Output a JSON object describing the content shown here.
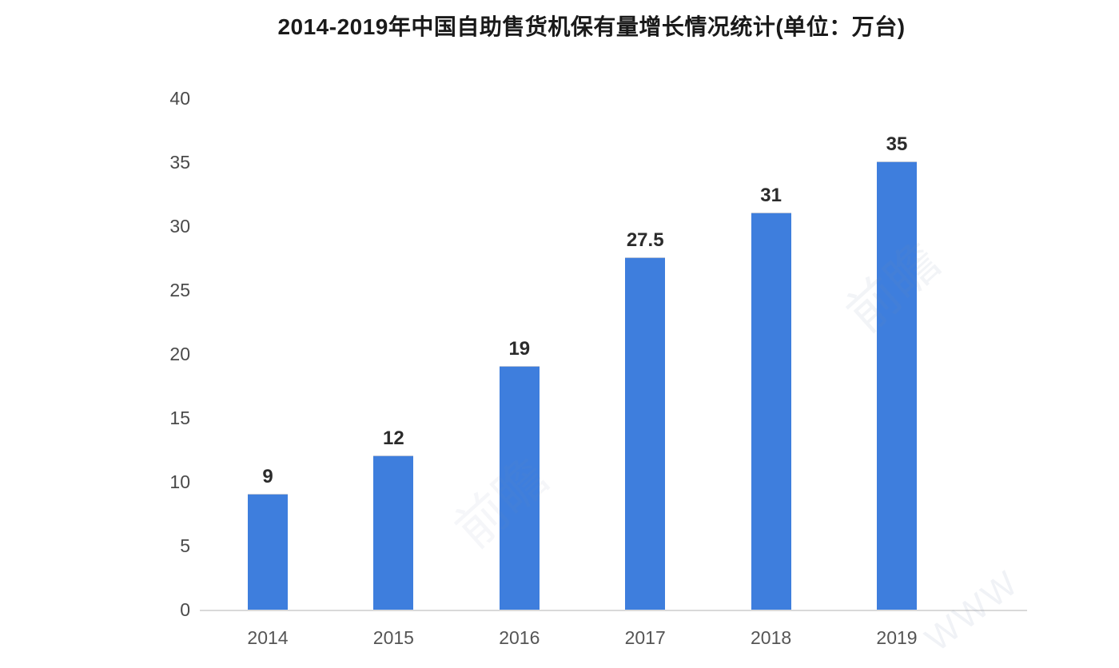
{
  "chart_data": {
    "type": "bar",
    "title": "2014-2019年中国自助售货机保有量增长情况统计(单位：万台)",
    "categories": [
      "2014",
      "2015",
      "2016",
      "2017",
      "2018",
      "2019"
    ],
    "values": [
      9,
      12,
      19,
      27.5,
      31,
      35
    ],
    "value_labels": [
      "9",
      "12",
      "19",
      "27.5",
      "31",
      "35"
    ],
    "xlabel": "",
    "ylabel": "",
    "ylim": [
      0,
      40
    ],
    "yticks": [
      0,
      5,
      10,
      15,
      20,
      25,
      30,
      35,
      40
    ],
    "grid": false,
    "legend": false,
    "bar_color": "#3e7edd",
    "axis_line_color": "#d9d9d9",
    "title_color": "#1a1a1a",
    "tick_color": "#4a4a4a",
    "value_label_color": "#2b2b2b"
  },
  "watermark": {
    "text": "前瞻",
    "corner_text": "WWW"
  }
}
